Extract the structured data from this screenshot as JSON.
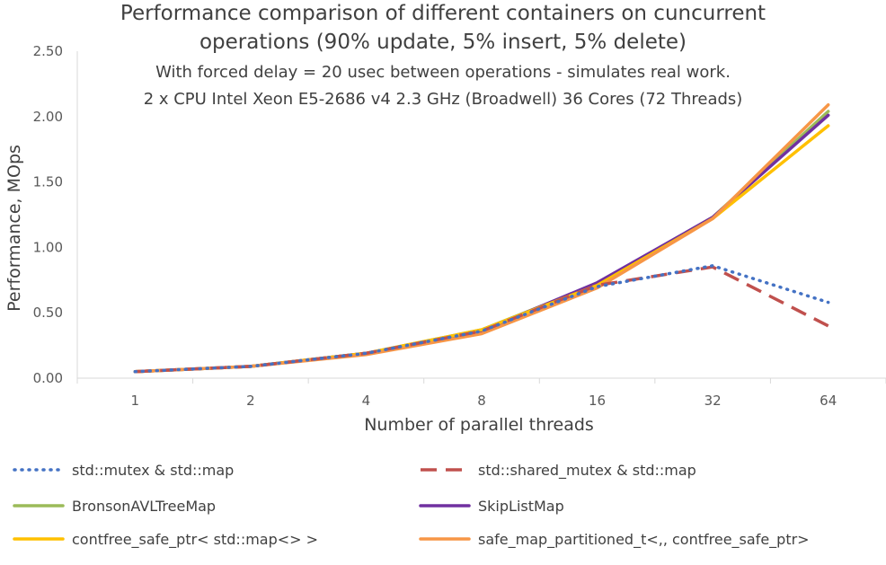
{
  "chart_data": {
    "type": "line",
    "title_lines": [
      "Performance comparison of different containers on cuncurrent",
      "operations (90% update, 5% insert, 5% delete)"
    ],
    "subtitle_lines": [
      "With forced delay = 20 usec between operations - simulates real work.",
      "2 x CPU Intel Xeon E5-2686 v4 2.3 GHz (Broadwell) 36 Cores (72 Threads)"
    ],
    "xlabel": "Number of parallel threads",
    "ylabel": "Performance, MOps",
    "categories": [
      "1",
      "2",
      "4",
      "8",
      "16",
      "32",
      "64"
    ],
    "ylim": [
      0,
      2.5
    ],
    "yticks": [
      "0.00",
      "0.50",
      "1.00",
      "1.50",
      "2.00",
      "2.50"
    ],
    "grid": false,
    "legend_position": "bottom",
    "series": [
      {
        "name": "std::mutex & std::map",
        "color": "#4472C4",
        "dash": "dotted",
        "values": [
          0.05,
          0.09,
          0.19,
          0.36,
          0.7,
          0.86,
          0.58
        ]
      },
      {
        "name": "std::shared_mutex & std::map",
        "color": "#C0504D",
        "dash": "dashed",
        "values": [
          0.05,
          0.09,
          0.19,
          0.36,
          0.71,
          0.85,
          0.4
        ]
      },
      {
        "name": "BronsonAVLTreeMap",
        "color": "#9BBB59",
        "dash": "solid",
        "values": [
          0.05,
          0.09,
          0.19,
          0.37,
          0.72,
          1.23,
          2.04
        ]
      },
      {
        "name": "SkipListMap",
        "color": "#7030A0",
        "dash": "solid",
        "values": [
          0.05,
          0.09,
          0.19,
          0.36,
          0.73,
          1.23,
          2.01
        ]
      },
      {
        "name": "contfree_safe_ptr< std::map<> >",
        "color": "#FFC000",
        "dash": "solid",
        "values": [
          0.05,
          0.09,
          0.19,
          0.37,
          0.71,
          1.22,
          1.93
        ]
      },
      {
        "name": "safe_map_partitioned_t<,, contfree_safe_ptr>",
        "color": "#F79646",
        "dash": "solid",
        "values": [
          0.05,
          0.09,
          0.18,
          0.34,
          0.69,
          1.22,
          2.09
        ]
      }
    ]
  }
}
